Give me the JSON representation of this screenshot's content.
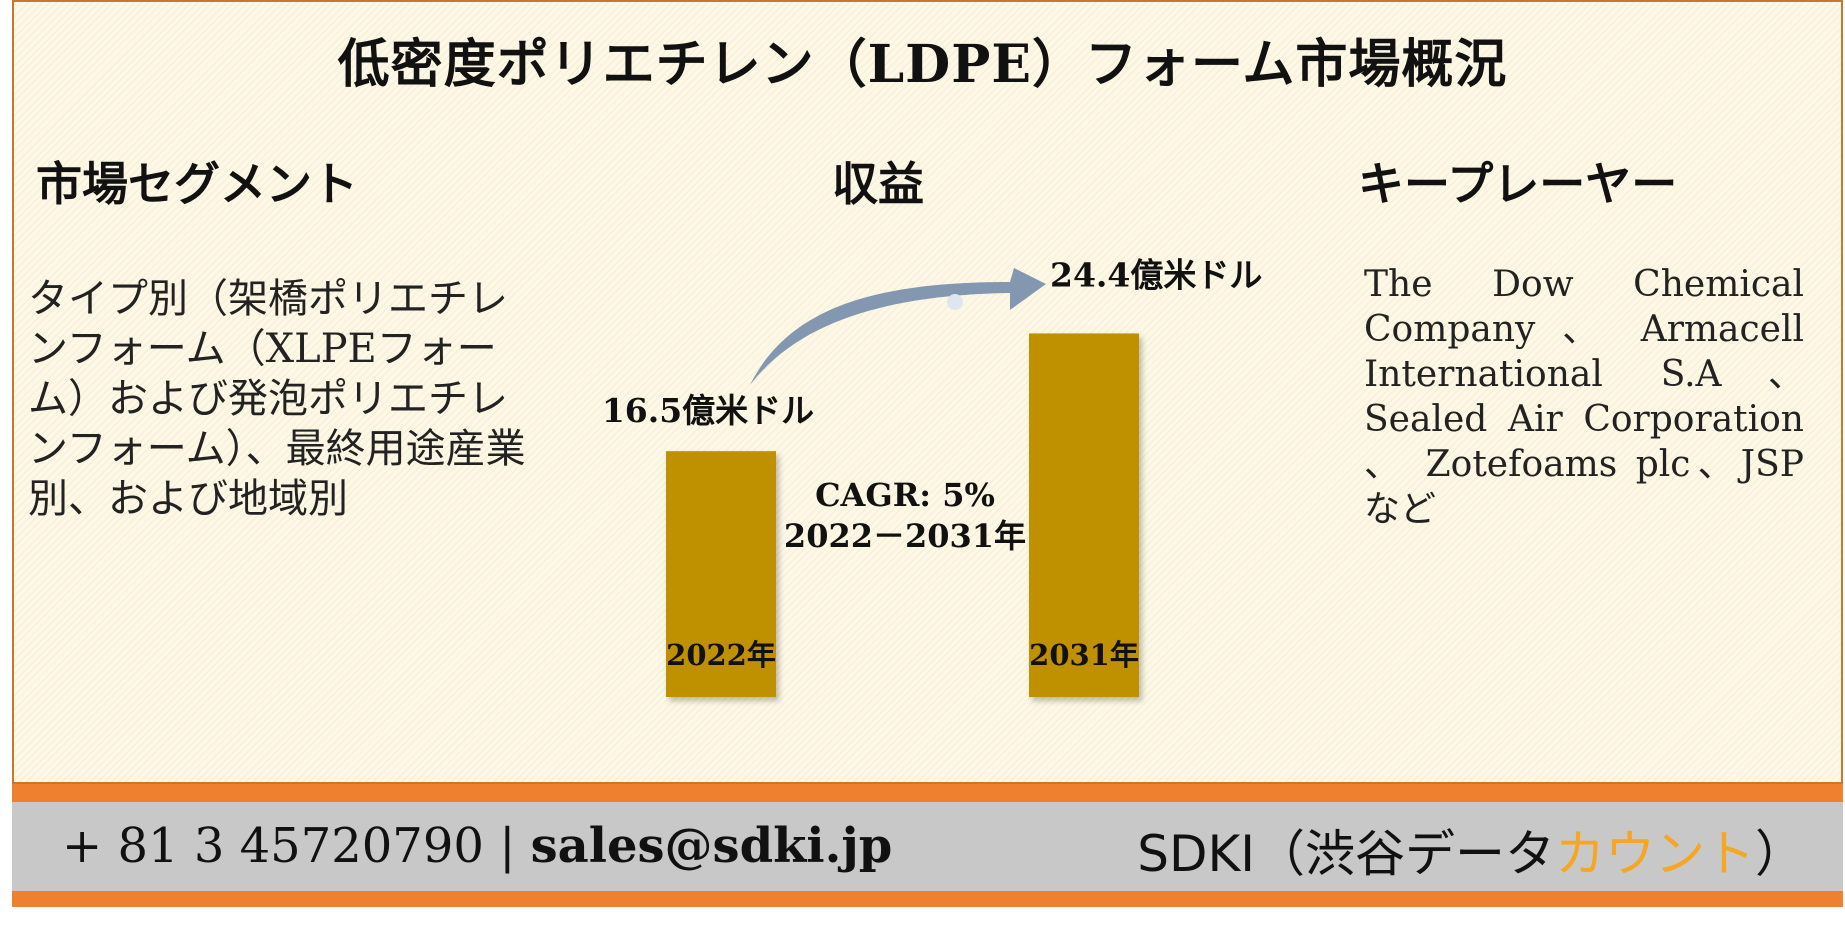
{
  "title": "低密度ポリエチレン（LDPE）フォーム市場概況",
  "sections": {
    "segments_heading": "市場セグメント",
    "revenue_heading": "収益",
    "players_heading": "キープレーヤー"
  },
  "segments_text": "タイプ別（架橋ポリエチレンフォーム（XLPEフォーム）および発泡ポリエチレンフォーム）、最終用途産業別、および地域別",
  "players_text": "The Dow Chemical Company 、 Armacell International S.A、Sealed Air Corporation 、 Zotefoams plc、JSPなど",
  "chart_data": {
    "type": "bar",
    "categories": [
      "2022年",
      "2031年"
    ],
    "values": [
      16.5,
      24.4
    ],
    "value_labels": [
      "16.5億米ドル",
      "24.4億米ドル"
    ],
    "annotation": [
      "CAGR: 5%",
      "2022－2031年"
    ],
    "bar_color": "#bf9000",
    "arrow_color": "#8497b0"
  },
  "footer": {
    "phone": "+ 81 3 45720790",
    "separator": "|",
    "email": "sales@sdki.jp",
    "company_prefix": "SDKI（渋谷データ",
    "company_accent": "カウント",
    "company_suffix": "）",
    "accent_color": "#f5a623",
    "band_color": "#ef8030"
  }
}
